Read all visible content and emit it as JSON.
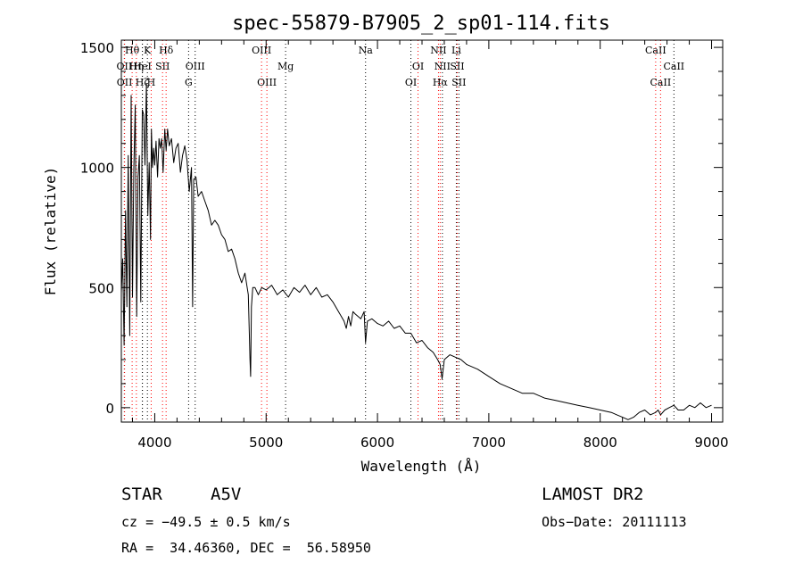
{
  "chart_data": {
    "type": "line",
    "title": "spec-55879-B7905_2_sp01-114.fits",
    "xlabel": "Wavelength (Å)",
    "ylabel": "Flux (relative)",
    "xlim": [
      3700,
      9100
    ],
    "ylim": [
      -60,
      1530
    ],
    "x_ticks": [
      4000,
      5000,
      6000,
      7000,
      8000,
      9000
    ],
    "y_ticks": [
      0,
      500,
      1000,
      1500
    ],
    "grid": false,
    "series": [
      {
        "color": "#000000",
        "x": [
          3700,
          3712,
          3725,
          3738,
          3750,
          3762,
          3775,
          3788,
          3800,
          3812,
          3825,
          3838,
          3850,
          3862,
          3875,
          3888,
          3900,
          3912,
          3925,
          3938,
          3950,
          3962,
          3970,
          3980,
          3990,
          4000,
          4012,
          4025,
          4038,
          4050,
          4062,
          4075,
          4090,
          4102,
          4115,
          4130,
          4150,
          4170,
          4190,
          4210,
          4230,
          4250,
          4270,
          4290,
          4310,
          4330,
          4340,
          4350,
          4370,
          4390,
          4420,
          4450,
          4480,
          4510,
          4540,
          4570,
          4600,
          4630,
          4660,
          4690,
          4720,
          4750,
          4780,
          4810,
          4840,
          4855,
          4861,
          4868,
          4880,
          4900,
          4930,
          4960,
          5000,
          5050,
          5100,
          5150,
          5200,
          5250,
          5300,
          5350,
          5400,
          5450,
          5500,
          5550,
          5600,
          5650,
          5700,
          5720,
          5740,
          5760,
          5780,
          5800,
          5850,
          5880,
          5893,
          5910,
          5950,
          6000,
          6050,
          6100,
          6150,
          6200,
          6250,
          6300,
          6350,
          6400,
          6450,
          6500,
          6540,
          6563,
          6580,
          6600,
          6650,
          6700,
          6750,
          6800,
          6900,
          7000,
          7100,
          7200,
          7300,
          7400,
          7500,
          7600,
          7700,
          7800,
          7900,
          8000,
          8100,
          8150,
          8200,
          8250,
          8300,
          8350,
          8400,
          8450,
          8498,
          8520,
          8542,
          8580,
          8620,
          8662,
          8700,
          8750,
          8800,
          8850,
          8900,
          8950,
          9000
        ],
        "y": [
          480,
          620,
          260,
          820,
          420,
          1050,
          300,
          1300,
          460,
          1000,
          1260,
          380,
          960,
          1050,
          440,
          1240,
          1220,
          1010,
          1350,
          800,
          1020,
          700,
          1160,
          1000,
          1080,
          1010,
          1110,
          960,
          1120,
          1080,
          1120,
          980,
          1160,
          1070,
          1160,
          1090,
          1120,
          1020,
          1080,
          1100,
          980,
          1050,
          1090,
          1030,
          900,
          1000,
          420,
          950,
          960,
          880,
          900,
          860,
          820,
          760,
          780,
          760,
          720,
          700,
          650,
          660,
          620,
          560,
          520,
          560,
          470,
          200,
          130,
          420,
          500,
          500,
          470,
          500,
          490,
          510,
          470,
          490,
          460,
          500,
          480,
          510,
          470,
          500,
          460,
          470,
          440,
          400,
          360,
          330,
          380,
          340,
          400,
          390,
          370,
          400,
          270,
          360,
          370,
          350,
          340,
          360,
          330,
          340,
          310,
          310,
          270,
          280,
          250,
          230,
          200,
          180,
          120,
          200,
          220,
          210,
          200,
          180,
          160,
          130,
          100,
          80,
          60,
          60,
          40,
          30,
          20,
          10,
          0,
          -10,
          -20,
          -30,
          -40,
          -50,
          -40,
          -20,
          -10,
          -30,
          -20,
          -10,
          -30,
          -10,
          0,
          10,
          -10,
          -10,
          10,
          0,
          20,
          0,
          10
        ]
      }
    ],
    "lines": [
      {
        "label": "Hθ",
        "x": 3797,
        "color": "#000000",
        "row": 1
      },
      {
        "label": "K",
        "x": 3934,
        "color": "#000000",
        "row": 1
      },
      {
        "label": "Hδ",
        "x": 4102,
        "color": "#000000",
        "row": 1
      },
      {
        "label": "OII",
        "x": 3727,
        "color": "#000000",
        "row": 2
      },
      {
        "label": "Hη",
        "x": 3835,
        "color": "#000000",
        "row": 2
      },
      {
        "label": "HeI",
        "x": 3889,
        "color": "#000000",
        "row": 2
      },
      {
        "label": "SII",
        "x": 4070,
        "color": "#000000",
        "row": 2
      },
      {
        "label": "OIII",
        "x": 4363,
        "color": "#000000",
        "row": 2
      },
      {
        "label": "OII",
        "x": 3729,
        "color": "#000000",
        "row": 3
      },
      {
        "label": "Hζ",
        "x": 3889,
        "color": "#000000",
        "row": 3
      },
      {
        "label": "H",
        "x": 3968,
        "color": "#000000",
        "row": 3
      },
      {
        "label": "G",
        "x": 4304,
        "color": "#000000",
        "row": 3
      },
      {
        "label": "OIII",
        "x": 4959,
        "color": "#000000",
        "row": 1
      },
      {
        "label": "Mg",
        "x": 5175,
        "color": "#000000",
        "row": 2
      },
      {
        "label": "OIII",
        "x": 5007,
        "color": "#000000",
        "row": 3
      },
      {
        "label": "Na",
        "x": 5893,
        "color": "#000000",
        "row": 1
      },
      {
        "label": "NII",
        "x": 6548,
        "color": "#000000",
        "row": 1
      },
      {
        "label": "Li",
        "x": 6708,
        "color": "#000000",
        "row": 1
      },
      {
        "label": "OI",
        "x": 6364,
        "color": "#000000",
        "row": 2
      },
      {
        "label": "NII",
        "x": 6583,
        "color": "#000000",
        "row": 2
      },
      {
        "label": "SII",
        "x": 6716,
        "color": "#000000",
        "row": 2
      },
      {
        "label": "OI",
        "x": 6300,
        "color": "#000000",
        "row": 3
      },
      {
        "label": "Hα",
        "x": 6563,
        "color": "#000000",
        "row": 3
      },
      {
        "label": "SII",
        "x": 6731,
        "color": "#000000",
        "row": 3
      },
      {
        "label": "CaII",
        "x": 8498,
        "color": "#000000",
        "row": 1
      },
      {
        "label": "CaII",
        "x": 8662,
        "color": "#000000",
        "row": 2
      },
      {
        "label": "CaII",
        "x": 8542,
        "color": "#000000",
        "row": 3
      }
    ],
    "line_marker_colors": [
      "#ff0000",
      "#000000"
    ]
  },
  "info": {
    "object_class": "STAR",
    "subclass": "A5V",
    "survey": "LAMOST DR2",
    "cz": "cz = −49.5 ± 0.5 km/s",
    "obs_date": "Obs−Date: 20111113",
    "radec": "RA =  34.46360, DEC =  56.58950"
  }
}
